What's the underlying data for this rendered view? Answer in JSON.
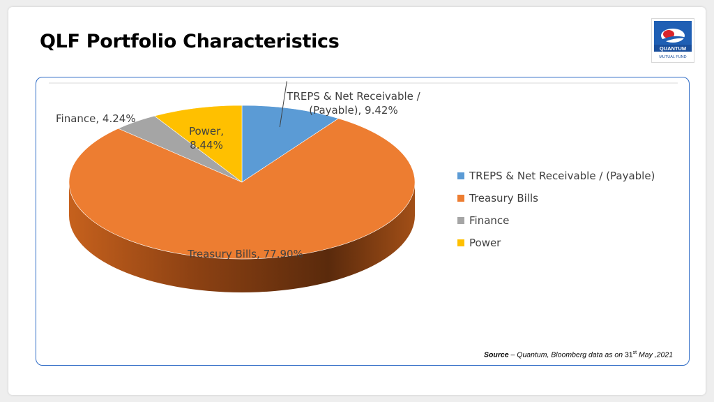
{
  "page": {
    "title": "QLF Portfolio Characteristics"
  },
  "logo": {
    "line1": "QUANTUM",
    "line2": "MUTUAL FUND"
  },
  "source": {
    "label": "Source",
    "text": " – Quantum, Bloomberg data as on ",
    "day": "31",
    "day_suffix": "st",
    "date_rest": " May ,2021"
  },
  "colors": {
    "treps": "#5b9bd5",
    "treasury": "#ed7d31",
    "finance": "#a5a5a5",
    "power": "#ffc000",
    "frame": "#2e6bc6"
  },
  "chart_data": {
    "type": "pie",
    "style": "3d",
    "legend_position": "right",
    "slices": [
      {
        "label": "TREPS & Net Receivable / (Payable)",
        "value": 9.42,
        "data_label_lines": [
          "TREPS & Net Receivable /",
          "(Payable), 9.42%"
        ]
      },
      {
        "label": "Treasury Bills",
        "value": 77.9,
        "data_label_lines": [
          "Treasury Bills, 77.90%"
        ]
      },
      {
        "label": "Finance",
        "value": 4.24,
        "data_label_lines": [
          "Finance, 4.24%"
        ]
      },
      {
        "label": "Power",
        "value": 8.44,
        "data_label_lines": [
          "Power,",
          "8.44%"
        ]
      }
    ]
  }
}
